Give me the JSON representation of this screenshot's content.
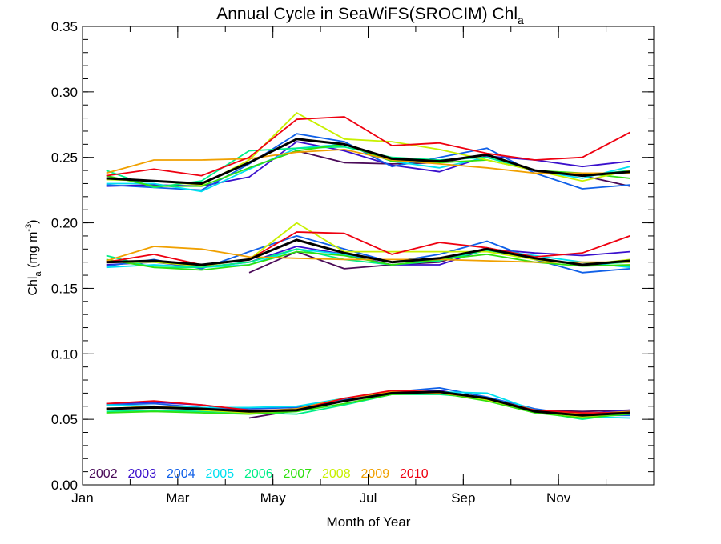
{
  "chart_data": {
    "type": "line",
    "title": "Annual Cycle in SeaWiFS(SROCIM) Chl",
    "title_subscript": "a",
    "xlabel": "Month of Year",
    "ylabel": {
      "base": "Chl",
      "subscript": "a",
      "units_open": " (mg m",
      "units_sup": "-3",
      "units_close": ")"
    },
    "xlim": [
      0,
      12
    ],
    "ylim": [
      0.0,
      0.35
    ],
    "x_ticks": [
      {
        "value": 0,
        "label": "Jan"
      },
      {
        "value": 2,
        "label": "Mar"
      },
      {
        "value": 4,
        "label": "May"
      },
      {
        "value": 6,
        "label": "Jul"
      },
      {
        "value": 8,
        "label": "Sep"
      },
      {
        "value": 10,
        "label": "Nov"
      }
    ],
    "y_ticks": [
      {
        "value": 0.0,
        "label": "0.00"
      },
      {
        "value": 0.05,
        "label": "0.05"
      },
      {
        "value": 0.1,
        "label": "0.10"
      },
      {
        "value": 0.15,
        "label": "0.15"
      },
      {
        "value": 0.2,
        "label": "0.20"
      },
      {
        "value": 0.25,
        "label": "0.25"
      },
      {
        "value": 0.3,
        "label": "0.30"
      },
      {
        "value": 0.35,
        "label": "0.35"
      }
    ],
    "x": [
      0.5,
      1.5,
      2.5,
      3.5,
      4.5,
      5.5,
      6.5,
      7.5,
      8.5,
      9.5,
      10.5,
      11.5
    ],
    "legend": {
      "placement": "bottom-left",
      "entries": [
        {
          "name": "2002",
          "color": "#4a0a58"
        },
        {
          "name": "2003",
          "color": "#3a10cc"
        },
        {
          "name": "2004",
          "color": "#1060e8"
        },
        {
          "name": "2005",
          "color": "#00e0f0"
        },
        {
          "name": "2006",
          "color": "#00ee88"
        },
        {
          "name": "2007",
          "color": "#30e010"
        },
        {
          "name": "2008",
          "color": "#c8f000"
        },
        {
          "name": "2009",
          "color": "#f0a000"
        },
        {
          "name": "2010",
          "color": "#ee0010"
        }
      ]
    },
    "series": [
      {
        "name": "2002",
        "color": "#4a0a58",
        "groups": [
          [
            null,
            null,
            null,
            0.051,
            0.057,
            0.064,
            0.071,
            0.071,
            0.066,
            0.057,
            0.056,
            0.057
          ],
          [
            null,
            null,
            null,
            0.162,
            0.178,
            0.165,
            0.168,
            0.17,
            0.181,
            0.173,
            0.168,
            0.167
          ],
          [
            null,
            null,
            null,
            0.242,
            0.255,
            0.246,
            0.245,
            0.246,
            0.252,
            0.24,
            0.236,
            0.228
          ]
        ]
      },
      {
        "name": "2003",
        "color": "#3a10cc",
        "groups": [
          [
            0.062,
            0.063,
            0.061,
            0.056,
            0.057,
            0.064,
            0.07,
            0.072,
            0.066,
            0.057,
            0.054,
            0.057
          ],
          [
            0.168,
            0.17,
            0.166,
            0.17,
            0.182,
            0.176,
            0.168,
            0.168,
            0.18,
            0.177,
            0.175,
            0.178
          ],
          [
            0.228,
            0.229,
            0.228,
            0.235,
            0.262,
            0.255,
            0.244,
            0.239,
            0.251,
            0.248,
            0.243,
            0.247
          ]
        ]
      },
      {
        "name": "2004",
        "color": "#1060e8",
        "groups": [
          [
            0.061,
            0.062,
            0.059,
            0.058,
            0.059,
            0.065,
            0.071,
            0.074,
            0.067,
            0.058,
            0.053,
            0.053
          ],
          [
            0.167,
            0.172,
            0.165,
            0.178,
            0.19,
            0.18,
            0.17,
            0.176,
            0.186,
            0.172,
            0.162,
            0.165
          ],
          [
            0.229,
            0.227,
            0.225,
            0.245,
            0.268,
            0.262,
            0.243,
            0.25,
            0.257,
            0.238,
            0.226,
            0.229
          ]
        ]
      },
      {
        "name": "2005",
        "color": "#00e0f0",
        "groups": [
          [
            0.061,
            0.06,
            0.059,
            0.059,
            0.06,
            0.066,
            0.071,
            0.071,
            0.07,
            0.057,
            0.052,
            0.051
          ],
          [
            0.166,
            0.168,
            0.166,
            0.168,
            0.18,
            0.176,
            0.17,
            0.172,
            0.18,
            0.175,
            0.17,
            0.166
          ],
          [
            0.23,
            0.23,
            0.224,
            0.241,
            0.257,
            0.26,
            0.247,
            0.242,
            0.25,
            0.24,
            0.234,
            0.243
          ]
        ]
      },
      {
        "name": "2006",
        "color": "#00ee88",
        "groups": [
          [
            0.056,
            0.057,
            0.056,
            0.055,
            0.054,
            0.061,
            0.069,
            0.069,
            0.066,
            0.056,
            0.05,
            0.055
          ],
          [
            0.175,
            0.166,
            0.166,
            0.17,
            0.18,
            0.172,
            0.168,
            0.171,
            0.179,
            0.172,
            0.168,
            0.17
          ],
          [
            0.24,
            0.227,
            0.232,
            0.255,
            0.257,
            0.258,
            0.25,
            0.248,
            0.25,
            0.24,
            0.236,
            0.24
          ]
        ]
      },
      {
        "name": "2007",
        "color": "#30e010",
        "groups": [
          [
            0.055,
            0.056,
            0.055,
            0.054,
            0.056,
            0.062,
            0.069,
            0.07,
            0.064,
            0.055,
            0.051,
            0.054
          ],
          [
            0.172,
            0.166,
            0.164,
            0.168,
            0.178,
            0.175,
            0.168,
            0.172,
            0.176,
            0.17,
            0.167,
            0.168
          ],
          [
            0.236,
            0.228,
            0.228,
            0.242,
            0.255,
            0.26,
            0.247,
            0.246,
            0.248,
            0.24,
            0.238,
            0.234
          ]
        ]
      },
      {
        "name": "2008",
        "color": "#c8f000",
        "groups": [
          [
            0.058,
            0.06,
            0.057,
            0.055,
            0.057,
            0.064,
            0.07,
            0.071,
            0.065,
            0.056,
            0.052,
            0.055
          ],
          [
            0.17,
            0.17,
            0.167,
            0.172,
            0.2,
            0.178,
            0.178,
            0.178,
            0.178,
            0.172,
            0.168,
            0.172
          ],
          [
            0.233,
            0.232,
            0.229,
            0.248,
            0.284,
            0.264,
            0.262,
            0.256,
            0.248,
            0.24,
            0.232,
            0.24
          ]
        ]
      },
      {
        "name": "2009",
        "color": "#f0a000",
        "groups": [
          [
            0.058,
            0.06,
            0.058,
            0.056,
            0.058,
            0.066,
            0.071,
            0.07,
            0.066,
            0.057,
            0.054,
            0.056
          ],
          [
            0.171,
            0.182,
            0.18,
            0.174,
            0.173,
            0.172,
            0.172,
            0.172,
            0.171,
            0.17,
            0.17,
            0.17
          ],
          [
            0.238,
            0.248,
            0.248,
            0.249,
            0.254,
            0.256,
            0.248,
            0.245,
            0.242,
            0.238,
            0.238,
            0.238
          ]
        ]
      },
      {
        "name": "2010",
        "color": "#ee0010",
        "groups": [
          [
            0.062,
            0.064,
            0.061,
            0.057,
            0.057,
            0.066,
            0.072,
            0.071,
            0.066,
            0.057,
            0.055,
            0.055
          ],
          [
            0.17,
            0.176,
            0.168,
            0.172,
            0.193,
            0.192,
            0.176,
            0.185,
            0.181,
            0.174,
            0.177,
            0.19
          ],
          [
            0.236,
            0.241,
            0.236,
            0.25,
            0.279,
            0.281,
            0.259,
            0.261,
            0.253,
            0.248,
            0.25,
            0.269
          ]
        ]
      },
      {
        "name": "mean",
        "color": "#000000",
        "emphasis": true,
        "groups": [
          [
            0.058,
            0.059,
            0.058,
            0.056,
            0.057,
            0.064,
            0.07,
            0.071,
            0.066,
            0.056,
            0.053,
            0.055
          ],
          [
            0.17,
            0.171,
            0.168,
            0.172,
            0.187,
            0.177,
            0.17,
            0.173,
            0.18,
            0.173,
            0.168,
            0.171
          ],
          [
            0.234,
            0.232,
            0.23,
            0.246,
            0.264,
            0.26,
            0.249,
            0.247,
            0.252,
            0.24,
            0.236,
            0.239
          ]
        ]
      }
    ]
  }
}
